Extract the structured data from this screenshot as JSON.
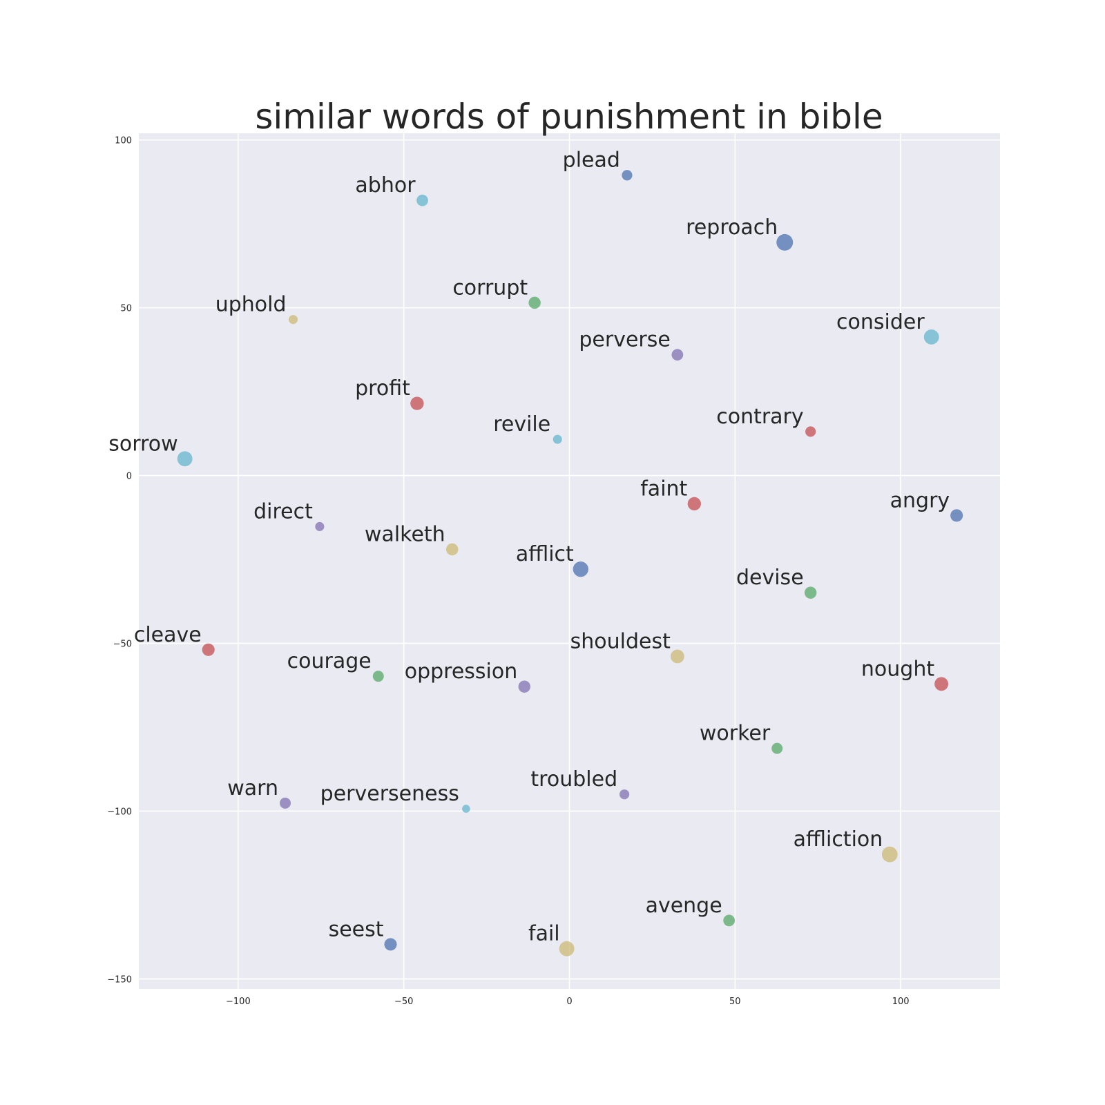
{
  "chart_data": {
    "type": "scatter",
    "title": "similar words of punishment in bible",
    "xlabel": "",
    "ylabel": "",
    "xlim": [
      -130,
      130
    ],
    "ylim": [
      -153,
      102
    ],
    "xticks": [
      -100,
      -50,
      0,
      50,
      100
    ],
    "yticks": [
      -150,
      -100,
      -50,
      0,
      50,
      100
    ],
    "xtick_labels": [
      "−100",
      "−50",
      "0",
      "50",
      "100"
    ],
    "ytick_labels": [
      "−150",
      "−100",
      "−50",
      "0",
      "50",
      "100"
    ],
    "grid": true,
    "palette": {
      "blue": "#4c72b0",
      "green": "#55a868",
      "red": "#c44e52",
      "purple": "#8172b2",
      "yellow": "#ccb974",
      "cyan": "#64b5cd",
      "background": "#eaeaf2",
      "text": "#262626"
    },
    "points": [
      {
        "label": "plead",
        "x": 17.4,
        "y": 89.5,
        "size": 0.2,
        "color": "blue"
      },
      {
        "label": "abhor",
        "x": -44.4,
        "y": 82.0,
        "size": 0.3,
        "color": "cyan"
      },
      {
        "label": "reproach",
        "x": 65.0,
        "y": 69.5,
        "size": 1.0,
        "color": "blue"
      },
      {
        "label": "corrupt",
        "x": -10.5,
        "y": 51.5,
        "size": 0.35,
        "color": "green"
      },
      {
        "label": "uphold",
        "x": -83.4,
        "y": 46.5,
        "size": 0.1,
        "color": "yellow"
      },
      {
        "label": "consider",
        "x": 109.3,
        "y": 41.3,
        "size": 0.75,
        "color": "cyan"
      },
      {
        "label": "perverse",
        "x": 32.6,
        "y": 36.0,
        "size": 0.3,
        "color": "purple"
      },
      {
        "label": "profit",
        "x": -46.0,
        "y": 21.5,
        "size": 0.5,
        "color": "red"
      },
      {
        "label": "contrary",
        "x": 72.8,
        "y": 13.1,
        "size": 0.2,
        "color": "red"
      },
      {
        "label": "revile",
        "x": -3.6,
        "y": 10.8,
        "size": 0.1,
        "color": "cyan"
      },
      {
        "label": "sorrow",
        "x": -116.1,
        "y": 5.0,
        "size": 0.75,
        "color": "cyan"
      },
      {
        "label": "faint",
        "x": 37.7,
        "y": -8.4,
        "size": 0.5,
        "color": "red"
      },
      {
        "label": "angry",
        "x": 116.9,
        "y": -11.9,
        "size": 0.4,
        "color": "blue"
      },
      {
        "label": "direct",
        "x": -75.4,
        "y": -15.2,
        "size": 0.1,
        "color": "purple"
      },
      {
        "label": "walketh",
        "x": -35.4,
        "y": -22.0,
        "size": 0.35,
        "color": "yellow"
      },
      {
        "label": "afflict",
        "x": 3.4,
        "y": -27.9,
        "size": 0.8,
        "color": "blue"
      },
      {
        "label": "devise",
        "x": 72.8,
        "y": -34.9,
        "size": 0.35,
        "color": "green"
      },
      {
        "label": "cleave",
        "x": -109.0,
        "y": -51.9,
        "size": 0.4,
        "color": "red"
      },
      {
        "label": "shouldest",
        "x": 32.6,
        "y": -53.9,
        "size": 0.55,
        "color": "yellow"
      },
      {
        "label": "courage",
        "x": -57.7,
        "y": -59.8,
        "size": 0.25,
        "color": "green"
      },
      {
        "label": "oppression",
        "x": -13.6,
        "y": -62.9,
        "size": 0.35,
        "color": "purple"
      },
      {
        "label": "nought",
        "x": 112.3,
        "y": -62.1,
        "size": 0.55,
        "color": "red"
      },
      {
        "label": "worker",
        "x": 62.7,
        "y": -81.3,
        "size": 0.25,
        "color": "green"
      },
      {
        "label": "troubled",
        "x": 16.6,
        "y": -95.0,
        "size": 0.15,
        "color": "purple"
      },
      {
        "label": "warn",
        "x": -85.8,
        "y": -97.6,
        "size": 0.25,
        "color": "purple"
      },
      {
        "label": "perverseness",
        "x": -31.2,
        "y": -99.3,
        "size": 0.05,
        "color": "cyan"
      },
      {
        "label": "affliction",
        "x": 96.7,
        "y": -112.9,
        "size": 0.85,
        "color": "yellow"
      },
      {
        "label": "avenge",
        "x": 48.2,
        "y": -132.6,
        "size": 0.3,
        "color": "green"
      },
      {
        "label": "seest",
        "x": -54.0,
        "y": -139.7,
        "size": 0.4,
        "color": "blue"
      },
      {
        "label": "fail",
        "x": -0.8,
        "y": -141.0,
        "size": 0.75,
        "color": "yellow"
      }
    ]
  }
}
